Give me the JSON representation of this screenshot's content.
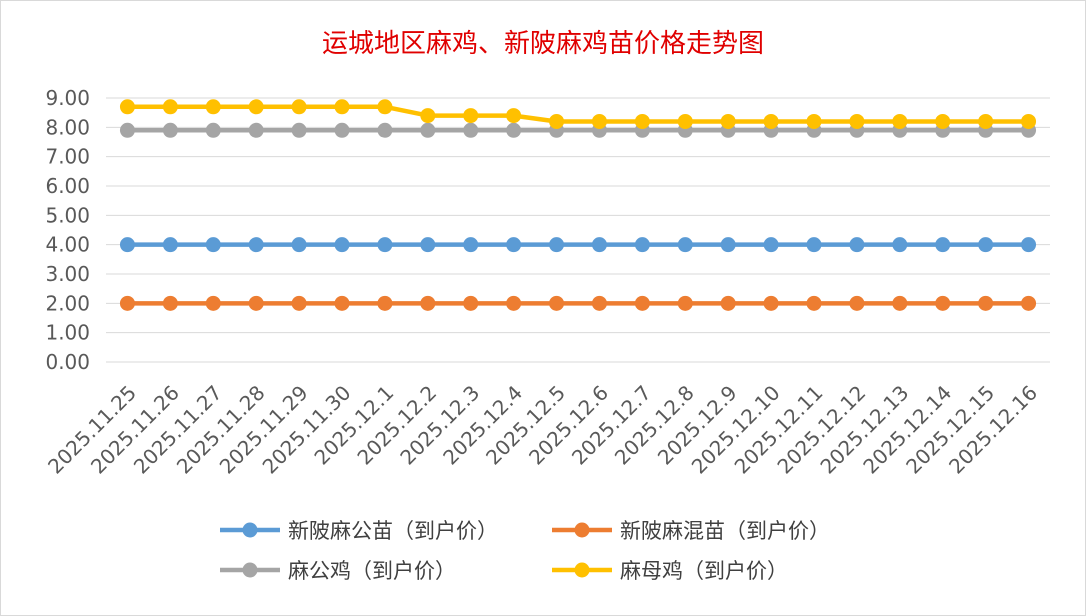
{
  "chart_data": {
    "type": "line",
    "title": "运城地区麻鸡、新陂麻鸡苗价格走势图",
    "xlabel": "",
    "ylabel": "",
    "ylim": [
      0,
      9
    ],
    "y_ticks": [
      "0.00",
      "1.00",
      "2.00",
      "3.00",
      "4.00",
      "5.00",
      "6.00",
      "7.00",
      "8.00",
      "9.00"
    ],
    "grid": "horizontal",
    "legend_position": "bottom",
    "categories": [
      "2025.11.25",
      "2025.11.26",
      "2025.11.27",
      "2025.11.28",
      "2025.11.29",
      "2025.11.30",
      "2025.12.1",
      "2025.12.2",
      "2025.12.3",
      "2025.12.4",
      "2025.12.5",
      "2025.12.6",
      "2025.12.7",
      "2025.12.8",
      "2025.12.9",
      "2025.12.10",
      "2025.12.11",
      "2025.12.12",
      "2025.12.13",
      "2025.12.14",
      "2025.12.15",
      "2025.12.16"
    ],
    "series": [
      {
        "name": "新陂麻公苗（到户价）",
        "color": "#5b9bd5",
        "values": [
          4.0,
          4.0,
          4.0,
          4.0,
          4.0,
          4.0,
          4.0,
          4.0,
          4.0,
          4.0,
          4.0,
          4.0,
          4.0,
          4.0,
          4.0,
          4.0,
          4.0,
          4.0,
          4.0,
          4.0,
          4.0,
          4.0
        ]
      },
      {
        "name": "新陂麻混苗（到户价）",
        "color": "#ed7d31",
        "values": [
          2.0,
          2.0,
          2.0,
          2.0,
          2.0,
          2.0,
          2.0,
          2.0,
          2.0,
          2.0,
          2.0,
          2.0,
          2.0,
          2.0,
          2.0,
          2.0,
          2.0,
          2.0,
          2.0,
          2.0,
          2.0,
          2.0
        ]
      },
      {
        "name": "麻公鸡（到户价）",
        "color": "#a5a5a5",
        "values": [
          7.9,
          7.9,
          7.9,
          7.9,
          7.9,
          7.9,
          7.9,
          7.9,
          7.9,
          7.9,
          7.9,
          7.9,
          7.9,
          7.9,
          7.9,
          7.9,
          7.9,
          7.9,
          7.9,
          7.9,
          7.9,
          7.9
        ]
      },
      {
        "name": "麻母鸡（到户价）",
        "color": "#ffc000",
        "values": [
          8.7,
          8.7,
          8.7,
          8.7,
          8.7,
          8.7,
          8.7,
          8.4,
          8.4,
          8.4,
          8.2,
          8.2,
          8.2,
          8.2,
          8.2,
          8.2,
          8.2,
          8.2,
          8.2,
          8.2,
          8.2,
          8.2
        ]
      }
    ]
  }
}
